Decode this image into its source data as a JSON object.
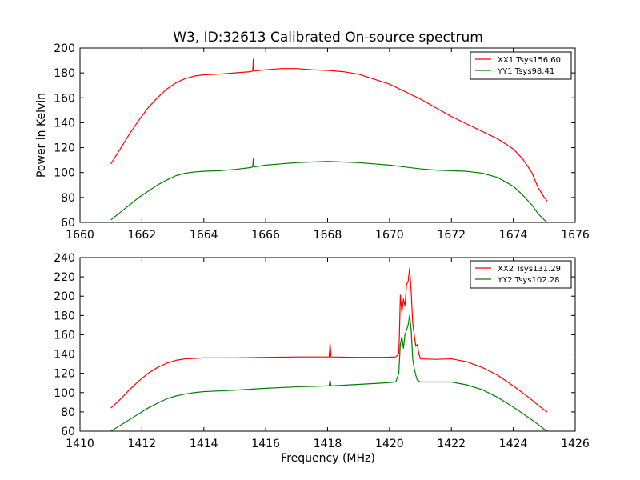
{
  "chart_data": [
    {
      "type": "line",
      "title": "W3, ID:32613 Calibrated On-source spectrum",
      "xlabel": "",
      "ylabel": "Power in Kelvin",
      "xlim": [
        1660,
        1676
      ],
      "ylim": [
        60,
        200
      ],
      "xticks": [
        1660,
        1662,
        1664,
        1666,
        1668,
        1670,
        1672,
        1674,
        1676
      ],
      "yticks": [
        60,
        80,
        100,
        120,
        140,
        160,
        180,
        200
      ],
      "legend_position": "top-right",
      "series": [
        {
          "name": "XX1 Tsys156.60",
          "color": "#ff0000",
          "points": [
            [
              1661.0,
              107
            ],
            [
              1661.3,
              119
            ],
            [
              1661.6,
              131
            ],
            [
              1661.9,
              142
            ],
            [
              1662.2,
              152
            ],
            [
              1662.5,
              160
            ],
            [
              1662.8,
              167
            ],
            [
              1663.1,
              172
            ],
            [
              1663.4,
              175.5
            ],
            [
              1663.7,
              177.5
            ],
            [
              1664.0,
              178.5
            ],
            [
              1664.5,
              179
            ],
            [
              1665.0,
              180
            ],
            [
              1665.5,
              181
            ],
            [
              1665.58,
              181.5
            ],
            [
              1665.6,
              191
            ],
            [
              1665.62,
              181.5
            ],
            [
              1666.0,
              182.5
            ],
            [
              1666.5,
              183.5
            ],
            [
              1667.0,
              183.5
            ],
            [
              1667.5,
              182.5
            ],
            [
              1668.0,
              182
            ],
            [
              1668.5,
              181
            ],
            [
              1669.0,
              179
            ],
            [
              1669.5,
              175
            ],
            [
              1670.0,
              171
            ],
            [
              1670.5,
              165
            ],
            [
              1671.0,
              159
            ],
            [
              1671.5,
              152
            ],
            [
              1672.0,
              145
            ],
            [
              1672.5,
              139
            ],
            [
              1673.0,
              133
            ],
            [
              1673.5,
              127
            ],
            [
              1674.0,
              119
            ],
            [
              1674.3,
              111
            ],
            [
              1674.6,
              100
            ],
            [
              1674.8,
              88
            ],
            [
              1675.0,
              80
            ],
            [
              1675.1,
              77
            ]
          ]
        },
        {
          "name": "YY1 Tsys98.41",
          "color": "#008000",
          "points": [
            [
              1661.0,
              62
            ],
            [
              1661.3,
              68
            ],
            [
              1661.6,
              74
            ],
            [
              1661.9,
              80
            ],
            [
              1662.2,
              85
            ],
            [
              1662.5,
              90
            ],
            [
              1662.8,
              94
            ],
            [
              1663.1,
              97.5
            ],
            [
              1663.4,
              99.5
            ],
            [
              1663.7,
              100.5
            ],
            [
              1664.0,
              101
            ],
            [
              1664.5,
              101.5
            ],
            [
              1665.0,
              102.5
            ],
            [
              1665.5,
              104
            ],
            [
              1665.58,
              104.5
            ],
            [
              1665.6,
              111
            ],
            [
              1665.62,
              104.5
            ],
            [
              1666.0,
              106
            ],
            [
              1666.5,
              107
            ],
            [
              1667.0,
              108
            ],
            [
              1667.5,
              108.5
            ],
            [
              1668.0,
              109
            ],
            [
              1668.5,
              108.5
            ],
            [
              1669.0,
              108
            ],
            [
              1669.5,
              107
            ],
            [
              1670.0,
              106
            ],
            [
              1670.5,
              104.5
            ],
            [
              1671.0,
              103
            ],
            [
              1671.5,
              102
            ],
            [
              1672.0,
              101.5
            ],
            [
              1672.5,
              101
            ],
            [
              1673.0,
              99.5
            ],
            [
              1673.5,
              96
            ],
            [
              1674.0,
              89
            ],
            [
              1674.3,
              82
            ],
            [
              1674.6,
              74
            ],
            [
              1674.8,
              67
            ],
            [
              1675.0,
              62
            ],
            [
              1675.1,
              60
            ]
          ]
        }
      ]
    },
    {
      "type": "line",
      "title": "",
      "xlabel": "Frequency (MHz)",
      "ylabel": "",
      "xlim": [
        1410,
        1426
      ],
      "ylim": [
        60,
        240
      ],
      "xticks": [
        1410,
        1412,
        1414,
        1416,
        1418,
        1420,
        1422,
        1424,
        1426
      ],
      "yticks": [
        60,
        80,
        100,
        120,
        140,
        160,
        180,
        200,
        220,
        240
      ],
      "legend_position": "top-right",
      "series": [
        {
          "name": "XX2 Tsys131.29",
          "color": "#ff0000",
          "points": [
            [
              1411.0,
              84
            ],
            [
              1411.3,
              93
            ],
            [
              1411.6,
              103
            ],
            [
              1411.9,
              112
            ],
            [
              1412.2,
              120
            ],
            [
              1412.5,
              126
            ],
            [
              1412.8,
              130.5
            ],
            [
              1413.1,
              133.5
            ],
            [
              1413.4,
              135
            ],
            [
              1413.7,
              135.5
            ],
            [
              1414.0,
              136
            ],
            [
              1415.0,
              136
            ],
            [
              1416.0,
              136.5
            ],
            [
              1417.0,
              137
            ],
            [
              1418.0,
              137
            ],
            [
              1418.05,
              137
            ],
            [
              1418.08,
              151
            ],
            [
              1418.11,
              137
            ],
            [
              1419.0,
              136.5
            ],
            [
              1419.8,
              136.5
            ],
            [
              1420.2,
              137
            ],
            [
              1420.3,
              140
            ],
            [
              1420.32,
              160
            ],
            [
              1420.35,
              201
            ],
            [
              1420.4,
              183
            ],
            [
              1420.45,
              197
            ],
            [
              1420.5,
              190
            ],
            [
              1420.55,
              212
            ],
            [
              1420.6,
              215
            ],
            [
              1420.65,
              229
            ],
            [
              1420.7,
              205
            ],
            [
              1420.75,
              172
            ],
            [
              1420.8,
              160
            ],
            [
              1420.85,
              148
            ],
            [
              1420.9,
              150
            ],
            [
              1420.95,
              140
            ],
            [
              1421.0,
              135
            ],
            [
              1421.5,
              134.5
            ],
            [
              1422.0,
              135
            ],
            [
              1422.5,
              132
            ],
            [
              1423.0,
              126
            ],
            [
              1423.5,
              118
            ],
            [
              1424.0,
              107
            ],
            [
              1424.5,
              95
            ],
            [
              1424.8,
              87
            ],
            [
              1425.0,
              82
            ],
            [
              1425.1,
              80
            ]
          ]
        },
        {
          "name": "YY2 Tsys102.28",
          "color": "#008000",
          "points": [
            [
              1411.0,
              60
            ],
            [
              1411.3,
              66
            ],
            [
              1411.6,
              72
            ],
            [
              1411.9,
              78
            ],
            [
              1412.2,
              84
            ],
            [
              1412.5,
              89
            ],
            [
              1412.8,
              93.5
            ],
            [
              1413.1,
              96.5
            ],
            [
              1413.4,
              98.5
            ],
            [
              1413.7,
              100
            ],
            [
              1414.0,
              101
            ],
            [
              1415.0,
              102.5
            ],
            [
              1416.0,
              104.5
            ],
            [
              1417.0,
              106
            ],
            [
              1418.0,
              107
            ],
            [
              1418.05,
              107
            ],
            [
              1418.08,
              113
            ],
            [
              1418.11,
              107
            ],
            [
              1419.0,
              108.5
            ],
            [
              1419.8,
              110
            ],
            [
              1420.2,
              111
            ],
            [
              1420.3,
              120
            ],
            [
              1420.35,
              150
            ],
            [
              1420.4,
              158
            ],
            [
              1420.45,
              146
            ],
            [
              1420.5,
              160
            ],
            [
              1420.55,
              165
            ],
            [
              1420.6,
              170
            ],
            [
              1420.65,
              180
            ],
            [
              1420.7,
              165
            ],
            [
              1420.75,
              135
            ],
            [
              1420.8,
              125
            ],
            [
              1420.85,
              118
            ],
            [
              1420.9,
              113
            ],
            [
              1421.0,
              111
            ],
            [
              1421.5,
              111
            ],
            [
              1422.0,
              111
            ],
            [
              1422.5,
              108
            ],
            [
              1423.0,
              103
            ],
            [
              1423.5,
              95
            ],
            [
              1424.0,
              85
            ],
            [
              1424.5,
              74
            ],
            [
              1424.8,
              67
            ],
            [
              1425.0,
              62
            ],
            [
              1425.1,
              60
            ]
          ]
        }
      ]
    }
  ]
}
